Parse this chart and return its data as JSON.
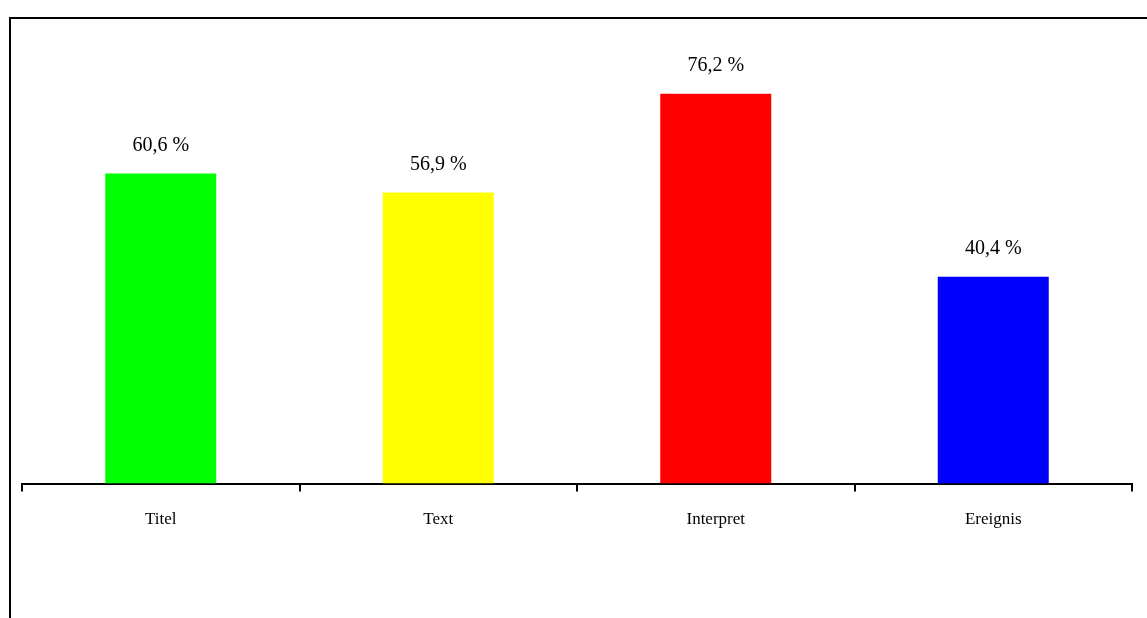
{
  "chart_data": {
    "type": "bar",
    "categories": [
      "Titel",
      "Text",
      "Interpret",
      "Ereignis"
    ],
    "values": [
      60.6,
      56.9,
      76.2,
      40.4
    ],
    "colors": [
      "#00ff00",
      "#ffff00",
      "#ff0000",
      "#0000ff"
    ],
    "value_labels": [
      "60,6 %",
      "56,9 %",
      "76,2 %",
      "40,4 %"
    ],
    "legend": false,
    "grid": false
  }
}
